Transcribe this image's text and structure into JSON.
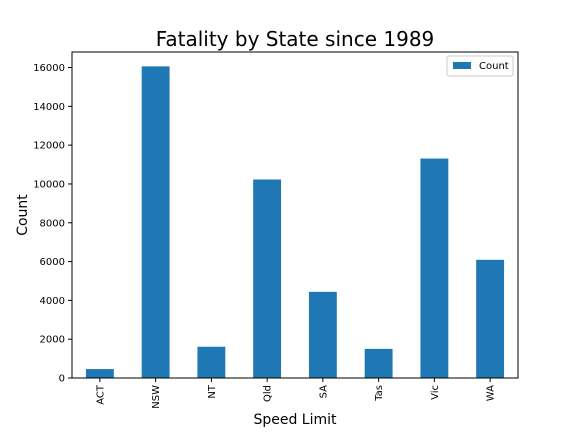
{
  "chart_data": {
    "type": "bar",
    "title": "Fatality by State since 1989",
    "xlabel": "Speed Limit",
    "ylabel": "Count",
    "categories": [
      "ACT",
      "NSW",
      "NT",
      "Qld",
      "SA",
      "Tas",
      "Vic",
      "WA"
    ],
    "series": [
      {
        "name": "Count",
        "values": [
          460,
          16060,
          1610,
          10230,
          4440,
          1500,
          11310,
          6090
        ],
        "color": "#1f77b4"
      }
    ],
    "ylim": [
      0,
      16800
    ],
    "yticks": [
      "0",
      "2000",
      "4000",
      "6000",
      "8000",
      "10000",
      "12000",
      "14000",
      "16000"
    ],
    "grid": false,
    "legend_position": "top-right"
  }
}
